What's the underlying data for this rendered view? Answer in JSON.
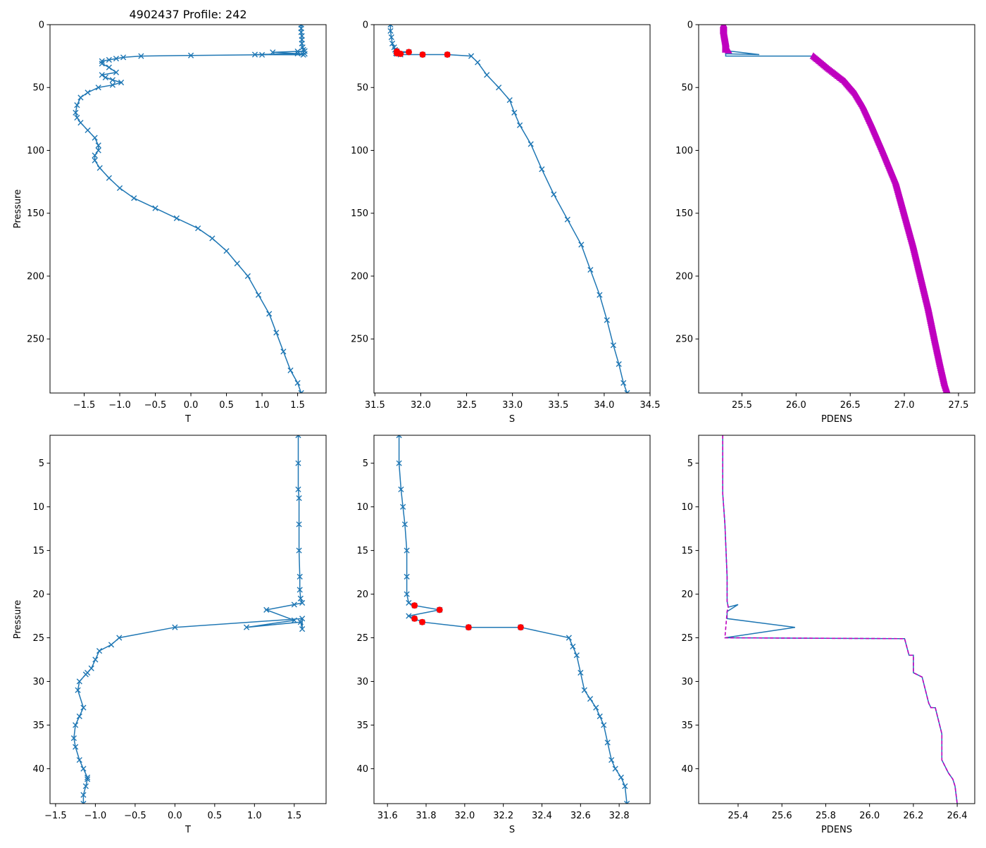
{
  "figure_title": "4902437 Profile: 242",
  "colors": {
    "line": "#1f77b4",
    "bad": "#ff0000",
    "pdens": "#bf00bf"
  },
  "chart_data": [
    {
      "id": "full-temperature",
      "type": "line",
      "marker": "x",
      "title": "4902437 Profile: 242",
      "xlabel": "T",
      "ylabel": "Pressure",
      "xlim": [
        -1.98,
        1.9
      ],
      "ylim": [
        293,
        0
      ],
      "y_inverted": true,
      "xticks": [
        -1.5,
        -1.0,
        -0.5,
        0.0,
        0.5,
        1.0,
        1.5
      ],
      "xtick_labels": [
        "−1.5",
        "−1.0",
        "−0.5",
        "0.0",
        "0.5",
        "1.0",
        "1.5"
      ],
      "yticks": [
        0,
        50,
        100,
        150,
        200,
        250
      ],
      "ytick_labels": [
        "0",
        "50",
        "100",
        "150",
        "200",
        "250"
      ],
      "series": [
        {
          "name": "T",
          "x": [
            1.55,
            1.55,
            1.55,
            1.56,
            1.56,
            1.56,
            1.57,
            1.58,
            1.6,
            1.5,
            1.15,
            1.5,
            0.9,
            1.58,
            1.6,
            1.0,
            0.0,
            -0.7,
            -0.95,
            -1.05,
            -1.15,
            -1.25,
            -1.25,
            -1.15,
            -1.05,
            -1.25,
            -1.2,
            -1.1,
            -0.98,
            -1.1,
            -1.3,
            -1.45,
            -1.55,
            -1.6,
            -1.62,
            -1.6,
            -1.55,
            -1.45,
            -1.35,
            -1.3,
            -1.3,
            -1.35,
            -1.35,
            -1.28,
            -1.15,
            -1.0,
            -0.8,
            -0.5,
            -0.2,
            0.1,
            0.3,
            0.5,
            0.65,
            0.8,
            0.95,
            1.1,
            1.2,
            1.3,
            1.4,
            1.5,
            1.55
          ],
          "y": [
            0,
            3,
            6,
            9,
            12,
            15,
            18,
            20,
            21,
            21.3,
            22,
            23,
            23.8,
            24,
            23.2,
            24,
            24.5,
            25,
            26,
            27,
            28,
            29,
            31,
            34,
            38,
            40,
            42,
            44,
            46,
            48,
            50,
            54,
            58,
            64,
            70,
            74,
            78,
            84,
            90,
            96,
            100,
            104,
            108,
            114,
            122,
            130,
            138,
            146,
            154,
            162,
            170,
            180,
            190,
            200,
            215,
            230,
            245,
            260,
            275,
            285,
            293
          ]
        }
      ]
    },
    {
      "id": "full-salinity",
      "type": "line",
      "marker": "x",
      "title": "",
      "xlabel": "S",
      "ylabel": "",
      "xlim": [
        31.49,
        34.5
      ],
      "ylim": [
        293,
        0
      ],
      "y_inverted": true,
      "xticks": [
        31.5,
        32.0,
        32.5,
        33.0,
        33.5,
        34.0,
        34.5
      ],
      "xtick_labels": [
        "31.5",
        "32.0",
        "32.5",
        "33.0",
        "33.5",
        "34.0",
        "34.5"
      ],
      "yticks": [
        0,
        50,
        100,
        150,
        200,
        250
      ],
      "ytick_labels": [
        "0",
        "50",
        "100",
        "150",
        "200",
        "250"
      ],
      "series": [
        {
          "name": "S",
          "x": [
            31.67,
            31.67,
            31.68,
            31.69,
            31.71,
            31.72,
            31.73,
            31.74,
            31.87,
            31.73,
            31.74,
            31.78,
            32.02,
            32.29,
            32.55,
            32.62,
            32.72,
            32.85,
            32.97,
            33.02,
            33.08,
            33.2,
            33.32,
            33.45,
            33.6,
            33.75,
            33.85,
            33.95,
            34.03,
            34.1,
            34.16,
            34.21,
            34.25
          ],
          "y": [
            0,
            5,
            10,
            15,
            18,
            20,
            21,
            21.3,
            21.8,
            22.8,
            23.2,
            23.8,
            23.8,
            23.8,
            25,
            30,
            40,
            50,
            60,
            70,
            80,
            95,
            115,
            135,
            155,
            175,
            195,
            215,
            235,
            255,
            270,
            285,
            293
          ]
        }
      ],
      "flagged_points": {
        "x": [
          31.74,
          31.87,
          31.74,
          31.78,
          32.02,
          32.29
        ],
        "y": [
          21.3,
          21.8,
          22.8,
          23.2,
          23.8,
          23.8
        ]
      }
    },
    {
      "id": "full-density",
      "type": "line",
      "marker": "triangle",
      "title": "",
      "xlabel": "PDENS",
      "ylabel": "",
      "xlim": [
        25.1,
        27.65
      ],
      "ylim": [
        293,
        0
      ],
      "y_inverted": true,
      "xticks": [
        25.5,
        26.0,
        26.5,
        27.0,
        27.5
      ],
      "xtick_labels": [
        "25.5",
        "26.0",
        "26.5",
        "27.0",
        "27.5"
      ],
      "yticks": [
        0,
        50,
        100,
        150,
        200,
        250
      ],
      "ytick_labels": [
        "0",
        "50",
        "100",
        "150",
        "200",
        "250"
      ],
      "series": [
        {
          "name": "PDENS",
          "x": [
            25.33,
            25.33,
            25.34,
            25.35,
            25.35,
            25.4,
            25.66,
            25.35,
            25.35,
            26.16,
            26.3,
            26.45,
            26.55,
            26.62,
            26.7,
            26.8,
            26.92,
            27.0,
            27.08,
            27.15,
            27.22,
            27.28,
            27.33,
            27.37,
            27.4
          ],
          "y": [
            0,
            5,
            10,
            15,
            20,
            21.2,
            23.8,
            23.2,
            25,
            25,
            35,
            45,
            55,
            65,
            80,
            100,
            125,
            150,
            175,
            200,
            225,
            250,
            270,
            285,
            293
          ]
        }
      ]
    },
    {
      "id": "zoom-temperature",
      "type": "line",
      "marker": "x",
      "title": "",
      "xlabel": "T",
      "ylabel": "Pressure",
      "xlim": [
        -1.57,
        1.9
      ],
      "ylim": [
        44,
        1.8
      ],
      "y_inverted": true,
      "xticks": [
        -1.5,
        -1.0,
        -0.5,
        0.0,
        0.5,
        1.0,
        1.5
      ],
      "xtick_labels": [
        "−1.5",
        "−1.0",
        "−0.5",
        "0.0",
        "0.5",
        "1.0",
        "1.5"
      ],
      "yticks": [
        5,
        10,
        15,
        20,
        25,
        30,
        35,
        40
      ],
      "ytick_labels": [
        "5",
        "10",
        "15",
        "20",
        "25",
        "30",
        "35",
        "40"
      ],
      "series": [
        {
          "name": "T",
          "x": [
            1.55,
            1.55,
            1.55,
            1.56,
            1.56,
            1.56,
            1.57,
            1.57,
            1.58,
            1.6,
            1.5,
            1.15,
            1.5,
            0.9,
            1.58,
            1.6,
            1.6,
            0.0,
            -0.7,
            -0.8,
            -0.95,
            -1.0,
            -1.05,
            -1.1,
            -1.12,
            -1.2,
            -1.22,
            -1.15,
            -1.2,
            -1.25,
            -1.27,
            -1.25,
            -1.2,
            -1.15,
            -1.1,
            -1.1,
            -1.12,
            -1.15,
            -1.15
          ],
          "y": [
            1.8,
            5,
            8,
            9,
            12,
            15,
            18,
            19.5,
            20.5,
            21,
            21.2,
            21.8,
            23.0,
            23.8,
            23.2,
            24,
            22.8,
            23.8,
            25,
            25.8,
            26.5,
            27.5,
            28.5,
            29,
            29.2,
            30,
            31,
            33,
            34,
            35,
            36.5,
            37.5,
            39,
            40,
            41,
            41.2,
            42,
            43,
            44
          ]
        }
      ]
    },
    {
      "id": "zoom-salinity",
      "type": "line",
      "marker": "x",
      "title": "",
      "xlabel": "S",
      "ylabel": "",
      "xlim": [
        31.53,
        32.96
      ],
      "ylim": [
        44,
        1.8
      ],
      "y_inverted": true,
      "xticks": [
        31.6,
        31.8,
        32.0,
        32.2,
        32.4,
        32.6,
        32.8
      ],
      "xtick_labels": [
        "31.6",
        "31.8",
        "32.0",
        "32.2",
        "32.4",
        "32.6",
        "32.8"
      ],
      "yticks": [
        5,
        10,
        15,
        20,
        25,
        30,
        35,
        40
      ],
      "ytick_labels": [
        "5",
        "10",
        "15",
        "20",
        "25",
        "30",
        "35",
        "40"
      ],
      "series": [
        {
          "name": "S",
          "x": [
            31.66,
            31.66,
            31.67,
            31.68,
            31.69,
            31.7,
            31.7,
            31.7,
            31.71,
            31.74,
            31.87,
            31.71,
            31.74,
            31.78,
            32.02,
            32.29,
            32.54,
            32.56,
            32.58,
            32.6,
            32.62,
            32.65,
            32.68,
            32.7,
            32.72,
            32.74,
            32.76,
            32.78,
            32.81,
            32.83,
            32.84
          ],
          "y": [
            1.8,
            5,
            8,
            10,
            12,
            15,
            18,
            20,
            21,
            21.3,
            21.8,
            22.5,
            22.8,
            23.2,
            23.8,
            23.8,
            25,
            26,
            27,
            29,
            31,
            32,
            33,
            34,
            35,
            37,
            39,
            40,
            41,
            42,
            44
          ]
        }
      ],
      "flagged_points": {
        "x": [
          31.74,
          31.87,
          31.74,
          31.78,
          32.02,
          32.29
        ],
        "y": [
          21.3,
          21.8,
          22.8,
          23.2,
          23.8,
          23.8
        ]
      }
    },
    {
      "id": "zoom-density",
      "type": "line",
      "marker": "none",
      "title": "",
      "xlabel": "PDENS",
      "ylabel": "",
      "xlim": [
        25.22,
        26.48
      ],
      "ylim": [
        44,
        1.8
      ],
      "y_inverted": true,
      "xticks": [
        25.4,
        25.6,
        25.8,
        26.0,
        26.2,
        26.4
      ],
      "xtick_labels": [
        "25.4",
        "25.6",
        "25.8",
        "26.0",
        "26.2",
        "26.4"
      ],
      "yticks": [
        5,
        10,
        15,
        20,
        25,
        30,
        35,
        40
      ],
      "ytick_labels": [
        "5",
        "10",
        "15",
        "20",
        "25",
        "30",
        "35",
        "40"
      ],
      "series": [
        {
          "name": "PDENS",
          "x": [
            25.33,
            25.33,
            25.34,
            25.35,
            25.35,
            25.355,
            25.4,
            25.35,
            25.35,
            25.66,
            25.34,
            26.16,
            26.18,
            26.2,
            26.2,
            26.24,
            26.27,
            26.28,
            26.3,
            26.32,
            26.33,
            26.33,
            26.36,
            26.38,
            26.39,
            26.4
          ],
          "y": [
            1.8,
            8.5,
            12,
            18,
            20.8,
            21.5,
            21.2,
            22,
            22.8,
            23.8,
            25,
            25.1,
            27,
            27,
            29,
            29.5,
            32.5,
            33,
            33,
            35,
            36,
            39,
            40.5,
            41.2,
            42,
            44
          ]
        },
        {
          "name": "PDENS-clean",
          "dashed": true,
          "x": [
            25.33,
            25.33,
            25.34,
            25.35,
            25.35,
            25.355,
            25.35,
            25.34,
            26.16,
            26.18,
            26.2,
            26.2,
            26.24,
            26.27,
            26.28,
            26.3,
            26.32,
            26.33,
            26.33,
            26.36,
            26.38,
            26.39,
            26.4
          ],
          "y": [
            1.8,
            8.5,
            12,
            18,
            20.8,
            21.5,
            22,
            25,
            25.1,
            27,
            27,
            29,
            29.5,
            32.5,
            33,
            33,
            35,
            36,
            39,
            40.5,
            41.2,
            42,
            44
          ]
        }
      ]
    }
  ]
}
